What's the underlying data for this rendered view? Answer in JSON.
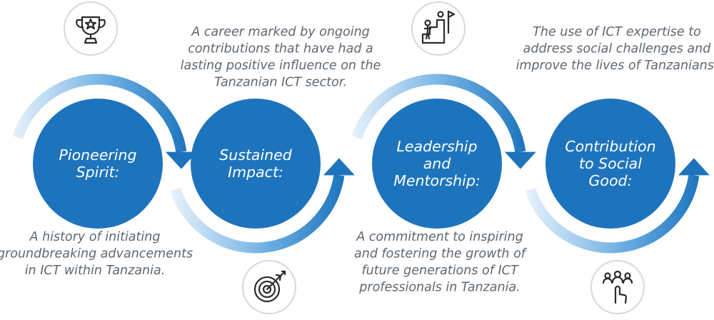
{
  "colors": {
    "circle_fill": "#1d74bd",
    "arc_dark": "#1d74bd",
    "arc_light": "#e8f2fb",
    "description_text": "#5f6770",
    "icon_badge_fill": "#ffffff",
    "icon_badge_border": "#d8d8d8"
  },
  "steps": [
    {
      "title": [
        "Pioneering",
        "Spirit:"
      ],
      "description": [
        "A history of initiating",
        "groundbreaking advancements",
        "in ICT within Tanzania."
      ],
      "icon": "trophy-icon"
    },
    {
      "title": [
        "Sustained",
        "Impact:"
      ],
      "description": [
        "A career marked by ongoing",
        "contributions that have had a",
        "lasting positive influence on the",
        "Tanzanian ICT sector."
      ],
      "icon": "target-arrow-icon"
    },
    {
      "title": [
        "Leadership",
        "and",
        "Mentorship:"
      ],
      "description": [
        "A commitment to inspiring",
        "and fostering the growth of",
        "future generations of ICT",
        "professionals in Tanzania."
      ],
      "icon": "climbing-team-flag-icon"
    },
    {
      "title": [
        "Contribution",
        "to Social",
        "Good:"
      ],
      "description": [
        "The use of ICT expertise to",
        "address social challenges and",
        "improve the lives of Tanzanians."
      ],
      "icon": "people-touch-icon"
    }
  ]
}
